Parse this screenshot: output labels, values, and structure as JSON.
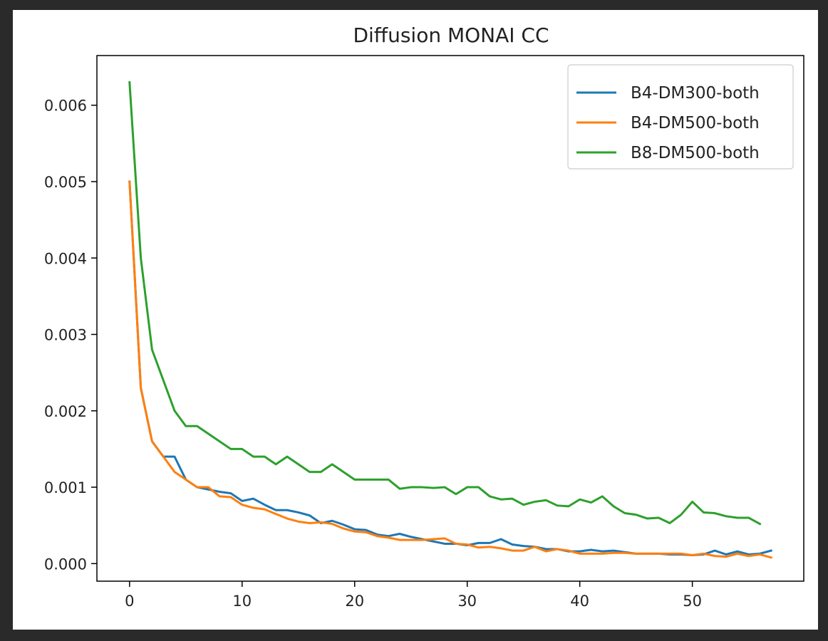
{
  "chart_data": {
    "type": "line",
    "title": "Diffusion MONAI CC",
    "xlabel": "",
    "ylabel": "",
    "xlim": [
      -2.9,
      59.9
    ],
    "ylim": [
      -0.00023,
      0.00665
    ],
    "xticks": [
      0,
      10,
      20,
      30,
      40,
      50
    ],
    "xtick_labels": [
      "0",
      "10",
      "20",
      "30",
      "40",
      "50"
    ],
    "yticks": [
      0.0,
      0.001,
      0.002,
      0.003,
      0.004,
      0.005,
      0.006
    ],
    "ytick_labels": [
      "0.000",
      "0.001",
      "0.002",
      "0.003",
      "0.004",
      "0.005",
      "0.006"
    ],
    "grid": false,
    "legend_position": "top-right",
    "series": [
      {
        "name": "B4-DM300-both",
        "color": "#1f77b4",
        "x": [
          0,
          1,
          2,
          3,
          4,
          5,
          6,
          7,
          8,
          9,
          10,
          11,
          12,
          13,
          14,
          15,
          16,
          17,
          18,
          19,
          20,
          21,
          22,
          23,
          24,
          25,
          26,
          27,
          28,
          29,
          30,
          31,
          32,
          33,
          34,
          35,
          36,
          37,
          38,
          39,
          40,
          41,
          42,
          43,
          44,
          45,
          46,
          47,
          48,
          49,
          50,
          51,
          52,
          53,
          54,
          55,
          56,
          57
        ],
        "y": [
          0.005,
          0.0023,
          0.0016,
          0.0014,
          0.0014,
          0.0011,
          0.001,
          0.00097,
          0.00094,
          0.00092,
          0.00082,
          0.00085,
          0.00077,
          0.0007,
          0.0007,
          0.00067,
          0.00063,
          0.00053,
          0.00056,
          0.00051,
          0.00045,
          0.00044,
          0.00038,
          0.00036,
          0.00039,
          0.00035,
          0.00032,
          0.00029,
          0.00026,
          0.00026,
          0.00024,
          0.00027,
          0.00027,
          0.00032,
          0.00025,
          0.00023,
          0.00022,
          0.00019,
          0.00019,
          0.00016,
          0.00016,
          0.00018,
          0.00016,
          0.00017,
          0.00015,
          0.00013,
          0.00013,
          0.00013,
          0.00012,
          0.00012,
          0.00011,
          0.00012,
          0.00017,
          0.00012,
          0.00016,
          0.00012,
          0.00013,
          0.00017
        ]
      },
      {
        "name": "B4-DM500-both",
        "color": "#ff7f0e",
        "x": [
          0,
          1,
          2,
          3,
          4,
          5,
          6,
          7,
          8,
          9,
          10,
          11,
          12,
          13,
          14,
          15,
          16,
          17,
          18,
          19,
          20,
          21,
          22,
          23,
          24,
          25,
          26,
          27,
          28,
          29,
          30,
          31,
          32,
          33,
          34,
          35,
          36,
          37,
          38,
          39,
          40,
          41,
          42,
          43,
          44,
          45,
          46,
          47,
          48,
          49,
          50,
          51,
          52,
          53,
          54,
          55,
          56,
          57
        ],
        "y": [
          0.005,
          0.0023,
          0.0016,
          0.0014,
          0.0012,
          0.0011,
          0.001,
          0.001,
          0.00088,
          0.00087,
          0.00077,
          0.00073,
          0.00071,
          0.00065,
          0.00059,
          0.00055,
          0.00053,
          0.00054,
          0.00052,
          0.00046,
          0.00042,
          0.00041,
          0.00036,
          0.00034,
          0.00031,
          0.00031,
          0.00031,
          0.00032,
          0.00033,
          0.00026,
          0.00025,
          0.00021,
          0.00022,
          0.0002,
          0.00017,
          0.00017,
          0.00022,
          0.00016,
          0.00019,
          0.00017,
          0.00013,
          0.00013,
          0.00013,
          0.00014,
          0.00014,
          0.00013,
          0.00013,
          0.00013,
          0.00013,
          0.00013,
          0.00011,
          0.00013,
          0.0001,
          9e-05,
          0.00013,
          0.0001,
          0.00012,
          8e-05
        ]
      },
      {
        "name": "B8-DM500-both",
        "color": "#2ca02c",
        "x": [
          0,
          1,
          2,
          3,
          4,
          5,
          6,
          7,
          8,
          9,
          10,
          11,
          12,
          13,
          14,
          15,
          16,
          17,
          18,
          19,
          20,
          21,
          22,
          23,
          24,
          25,
          26,
          27,
          28,
          29,
          30,
          31,
          32,
          33,
          34,
          35,
          36,
          37,
          38,
          39,
          40,
          41,
          42,
          43,
          44,
          45,
          46,
          47,
          48,
          49,
          50,
          51,
          52,
          53,
          54,
          55,
          56
        ],
        "y": [
          0.0063,
          0.004,
          0.0028,
          0.0024,
          0.002,
          0.0018,
          0.0018,
          0.0017,
          0.0016,
          0.0015,
          0.0015,
          0.0014,
          0.0014,
          0.0013,
          0.0014,
          0.0013,
          0.0012,
          0.0012,
          0.0013,
          0.0012,
          0.0011,
          0.0011,
          0.0011,
          0.0011,
          0.00098,
          0.001,
          0.001,
          0.00099,
          0.001,
          0.00091,
          0.001,
          0.001,
          0.00088,
          0.00084,
          0.00085,
          0.00077,
          0.00081,
          0.00083,
          0.00076,
          0.00075,
          0.00084,
          0.0008,
          0.00088,
          0.00075,
          0.00066,
          0.00064,
          0.00059,
          0.0006,
          0.00053,
          0.00064,
          0.00081,
          0.00067,
          0.00066,
          0.00062,
          0.0006,
          0.0006,
          0.00052
        ]
      }
    ]
  }
}
